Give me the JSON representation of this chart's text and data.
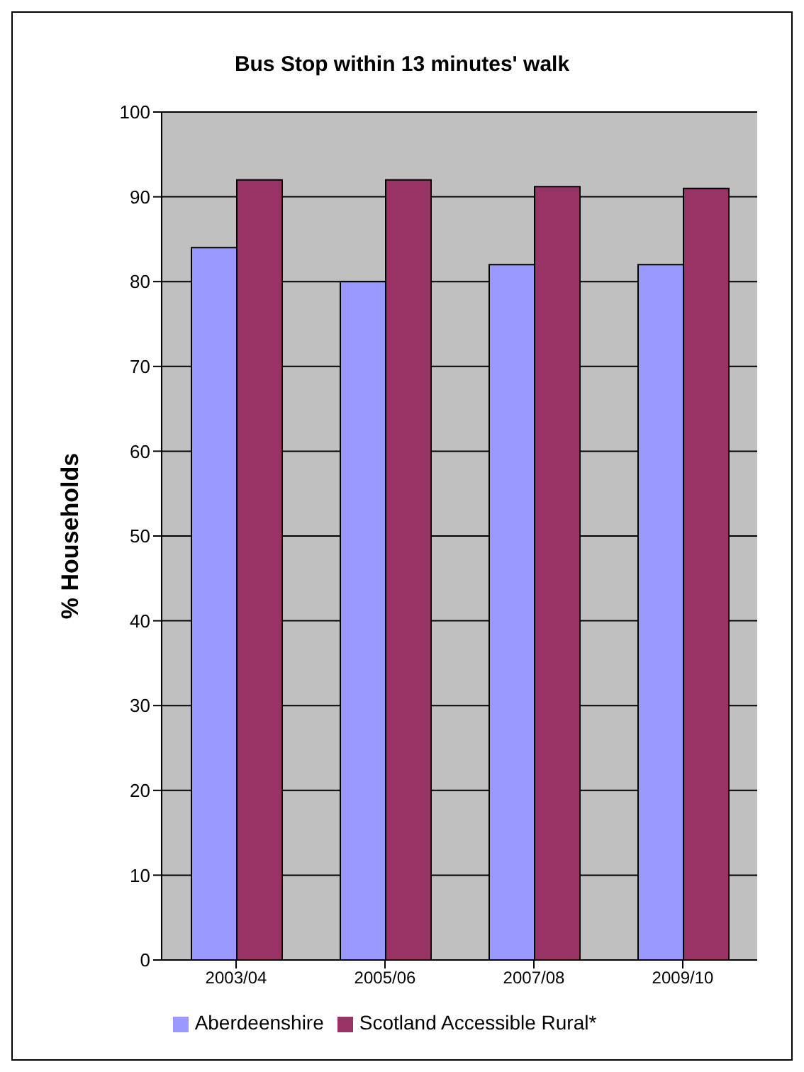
{
  "chart_data": {
    "type": "bar",
    "title": "Bus Stop within 13 minutes' walk",
    "ylabel": "% Households",
    "categories": [
      "2003/04",
      "2005/06",
      "2007/08",
      "2009/10"
    ],
    "series": [
      {
        "name": "Aberdeenshire",
        "color": "#9999ff",
        "values": [
          84,
          80,
          82,
          82
        ]
      },
      {
        "name": "Scotland Accessible Rural*",
        "color": "#993366",
        "values": [
          92,
          92,
          91.2,
          91
        ]
      }
    ],
    "ylim": [
      0,
      100
    ],
    "yticks": [
      0,
      10,
      20,
      30,
      40,
      50,
      60,
      70,
      80,
      90,
      100
    ],
    "grid": "y",
    "legend": "bottom"
  }
}
